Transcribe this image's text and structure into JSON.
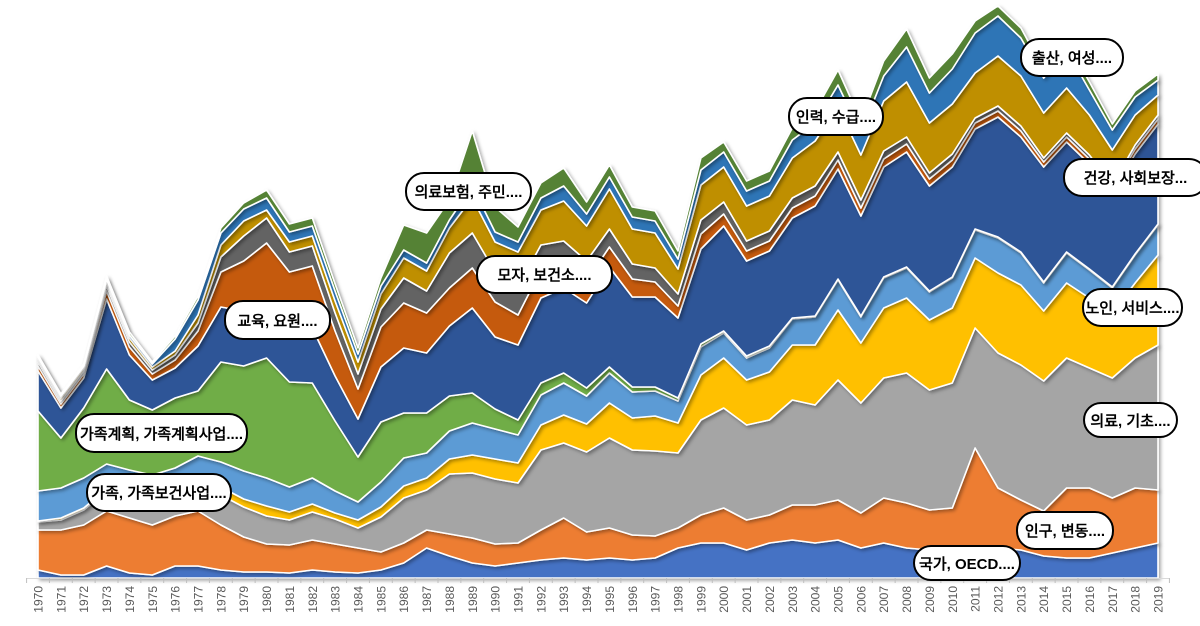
{
  "chart_data": {
    "type": "area",
    "stacking": "stacked",
    "title": "",
    "xlabel": "",
    "ylabel": "",
    "y_axis_visible": false,
    "units": "relative keyword frequency (arbitrary units; no y-axis shown in image)",
    "legend_position": "none (inline rounded callout data labels)",
    "axis_style": {
      "tick_color": "#BFBFBF",
      "axis_line_color": "#D9D9D9",
      "label_color": "#595959"
    },
    "x": [
      1970,
      1971,
      1972,
      1973,
      1974,
      1975,
      1976,
      1977,
      1978,
      1979,
      1980,
      1981,
      1982,
      1983,
      1984,
      1985,
      1986,
      1987,
      1988,
      1989,
      1990,
      1991,
      1992,
      1993,
      1994,
      1995,
      1996,
      1997,
      1998,
      1999,
      2000,
      2001,
      2002,
      2003,
      2004,
      2005,
      2006,
      2007,
      2008,
      2009,
      2010,
      2011,
      2012,
      2013,
      2014,
      2015,
      2016,
      2017,
      2018,
      2019
    ],
    "series": [
      {
        "name": "국가, OECD....",
        "color": "#4472C4",
        "values": [
          8,
          3,
          3,
          12,
          5,
          3,
          12,
          12,
          8,
          6,
          6,
          5,
          8,
          6,
          5,
          8,
          15,
          30,
          22,
          15,
          12,
          15,
          18,
          20,
          18,
          20,
          18,
          20,
          30,
          35,
          35,
          28,
          35,
          38,
          35,
          38,
          30,
          35,
          30,
          28,
          25,
          25,
          30,
          28,
          22,
          20,
          20,
          25,
          30,
          35
        ]
      },
      {
        "name": "인구, 변동....",
        "color": "#ED7D31",
        "values": [
          40,
          45,
          50,
          55,
          55,
          50,
          50,
          55,
          45,
          35,
          28,
          28,
          30,
          28,
          25,
          18,
          20,
          18,
          22,
          25,
          22,
          20,
          30,
          40,
          28,
          30,
          25,
          22,
          20,
          28,
          35,
          30,
          28,
          35,
          38,
          40,
          35,
          45,
          45,
          40,
          45,
          105,
          60,
          50,
          45,
          70,
          70,
          55,
          60,
          53
        ]
      },
      {
        "name": "의료, 기초....",
        "color": "#A5A5A5",
        "values": [
          8,
          10,
          15,
          20,
          25,
          25,
          20,
          25,
          30,
          30,
          28,
          25,
          28,
          25,
          20,
          35,
          45,
          40,
          60,
          65,
          65,
          60,
          80,
          75,
          80,
          90,
          85,
          85,
          75,
          95,
          100,
          95,
          95,
          105,
          100,
          120,
          110,
          120,
          130,
          120,
          125,
          120,
          135,
          135,
          130,
          130,
          120,
          120,
          130,
          145
        ]
      },
      {
        "name": "노인, 서비스....",
        "color": "#FFC000",
        "values": [
          1,
          2,
          2,
          2,
          3,
          5,
          8,
          8,
          8,
          8,
          10,
          8,
          8,
          6,
          8,
          10,
          12,
          12,
          15,
          18,
          20,
          20,
          25,
          28,
          28,
          35,
          32,
          35,
          30,
          45,
          50,
          45,
          48,
          55,
          60,
          70,
          60,
          70,
          75,
          70,
          75,
          70,
          80,
          80,
          70,
          75,
          70,
          65,
          75,
          90
        ]
      },
      {
        "name": "가족, 가족보건사업....",
        "color": "#5B9BD5",
        "values": [
          30,
          30,
          30,
          25,
          20,
          20,
          20,
          22,
          25,
          28,
          28,
          25,
          26,
          22,
          18,
          25,
          28,
          25,
          28,
          32,
          30,
          28,
          30,
          32,
          28,
          30,
          26,
          25,
          22,
          28,
          25,
          22,
          24,
          26,
          28,
          30,
          26,
          30,
          30,
          28,
          30,
          28,
          35,
          32,
          28,
          30,
          28,
          25,
          28,
          30
        ]
      },
      {
        "name": "가족계획, 가족계획사업....",
        "color": "#70AD47",
        "values": [
          80,
          50,
          70,
          95,
          70,
          65,
          70,
          65,
          100,
          105,
          120,
          105,
          95,
          70,
          45,
          60,
          45,
          40,
          35,
          30,
          20,
          15,
          12,
          10,
          8,
          6,
          5,
          4,
          3,
          3,
          2,
          2,
          2,
          1,
          1,
          1,
          1,
          1,
          1,
          1,
          1,
          1,
          1,
          1,
          1,
          1,
          1,
          1,
          1,
          1
        ]
      },
      {
        "name": "모자, 보건소....",
        "color": "#2F5597",
        "values": [
          40,
          30,
          30,
          70,
          45,
          30,
          30,
          45,
          55,
          55,
          45,
          50,
          55,
          45,
          38,
          55,
          65,
          60,
          70,
          85,
          72,
          75,
          85,
          85,
          85,
          100,
          90,
          90,
          80,
          95,
          105,
          95,
          95,
          100,
          110,
          110,
          100,
          110,
          115,
          105,
          110,
          100,
          120,
          115,
          115,
          110,
          105,
          95,
          100,
          100
        ]
      },
      {
        "name": "교육, 요원....",
        "color": "#C55A11",
        "values": [
          5,
          4,
          4,
          8,
          8,
          6,
          8,
          15,
          35,
          50,
          70,
          60,
          62,
          45,
          30,
          40,
          45,
          40,
          38,
          40,
          35,
          30,
          28,
          25,
          22,
          20,
          18,
          15,
          12,
          15,
          12,
          10,
          10,
          10,
          10,
          9,
          8,
          8,
          8,
          7,
          7,
          6,
          6,
          6,
          5,
          5,
          5,
          4,
          5,
          5
        ]
      },
      {
        "name": "의료보험, 주민....",
        "color": "#636363",
        "values": [
          4,
          3,
          3,
          5,
          5,
          4,
          5,
          8,
          15,
          25,
          25,
          20,
          20,
          18,
          15,
          18,
          25,
          22,
          35,
          35,
          30,
          28,
          25,
          22,
          20,
          18,
          15,
          14,
          12,
          14,
          12,
          10,
          10,
          10,
          10,
          8,
          8,
          8,
          7,
          6,
          6,
          5,
          5,
          5,
          4,
          4,
          4,
          3,
          4,
          4
        ]
      },
      {
        "name": "인력, 수급....",
        "color": "#BF8F00",
        "values": [
          3,
          3,
          3,
          4,
          4,
          3,
          4,
          8,
          12,
          15,
          8,
          10,
          10,
          12,
          12,
          15,
          20,
          20,
          25,
          35,
          30,
          35,
          35,
          40,
          35,
          40,
          35,
          35,
          25,
          35,
          35,
          35,
          35,
          40,
          45,
          45,
          45,
          50,
          55,
          50,
          50,
          45,
          50,
          50,
          45,
          45,
          40,
          35,
          30,
          20
        ]
      },
      {
        "name": "건강, 사회보장...",
        "color": "#2E75B6",
        "values": [
          2,
          2,
          2,
          3,
          3,
          3,
          12,
          15,
          12,
          12,
          12,
          10,
          10,
          10,
          8,
          8,
          8,
          8,
          8,
          12,
          10,
          10,
          12,
          15,
          12,
          12,
          12,
          12,
          10,
          15,
          15,
          15,
          15,
          18,
          18,
          22,
          22,
          25,
          35,
          30,
          35,
          40,
          40,
          38,
          35,
          38,
          25,
          20,
          18,
          15
        ]
      },
      {
        "name": "출산, 여성....",
        "color": "#548235",
        "values": [
          2,
          2,
          2,
          3,
          3,
          2,
          3,
          4,
          5,
          6,
          8,
          8,
          8,
          7,
          6,
          8,
          25,
          30,
          20,
          55,
          25,
          15,
          15,
          18,
          12,
          12,
          10,
          10,
          8,
          12,
          10,
          10,
          10,
          12,
          12,
          15,
          12,
          15,
          18,
          15,
          15,
          12,
          10,
          10,
          8,
          8,
          8,
          6,
          6,
          6
        ]
      }
    ]
  },
  "callouts": [
    {
      "series": "국가, OECD....",
      "text": "국가, OECD...."
    },
    {
      "series": "인구, 변동....",
      "text": "인구, 변동...."
    },
    {
      "series": "의료, 기초....",
      "text": "의료, 기초...."
    },
    {
      "series": "노인, 서비스....",
      "text": "노인, 서비스...."
    },
    {
      "series": "가족, 가족보건사업....",
      "text": "가족, 가족보건사업...."
    },
    {
      "series": "가족계획, 가족계획사업....",
      "text": "가족계획, 가족계획사업...."
    },
    {
      "series": "모자, 보건소....",
      "text": "모자, 보건소...."
    },
    {
      "series": "교육, 요원....",
      "text": "교육, 요원...."
    },
    {
      "series": "의료보험, 주민....",
      "text": "의료보험, 주민...."
    },
    {
      "series": "인력, 수급....",
      "text": "인력, 수급...."
    },
    {
      "series": "건강, 사회보장...",
      "text": "건강, 사회보장..."
    },
    {
      "series": "출산, 여성....",
      "text": "출산, 여성...."
    }
  ]
}
